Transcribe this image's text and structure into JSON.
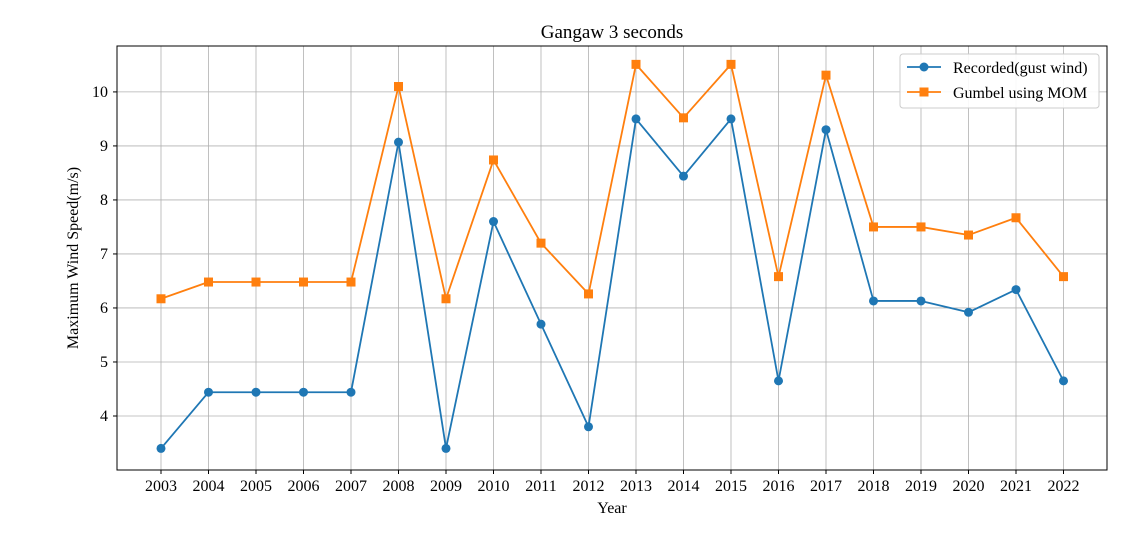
{
  "chart_data": {
    "type": "line",
    "title": "Gangaw 3 seconds",
    "xlabel": "Year",
    "ylabel": "Maximum Wind Speed(m/s)",
    "x": [
      "2003",
      "2004",
      "2005",
      "2006",
      "2007",
      "2008",
      "2009",
      "2010",
      "2011",
      "2012",
      "2013",
      "2014",
      "2015",
      "2016",
      "2017",
      "2018",
      "2019",
      "2020",
      "2021",
      "2022"
    ],
    "ylim": [
      3.0,
      10.85
    ],
    "yticks": [
      4,
      5,
      6,
      7,
      8,
      9,
      10
    ],
    "grid": true,
    "legend_position": "top-right",
    "series": [
      {
        "name": "Recorded(gust wind)",
        "color": "#1f77b4",
        "marker": "circle",
        "values": [
          3.4,
          4.44,
          4.44,
          4.44,
          4.44,
          9.07,
          3.4,
          7.6,
          5.7,
          3.8,
          9.5,
          8.44,
          9.5,
          4.65,
          9.3,
          6.13,
          6.13,
          5.92,
          6.34,
          4.65
        ]
      },
      {
        "name": "Gumbel using MOM",
        "color": "#ff7f0e",
        "marker": "square",
        "values": [
          6.17,
          6.48,
          6.48,
          6.48,
          6.48,
          10.1,
          6.17,
          8.74,
          7.2,
          6.26,
          10.51,
          9.52,
          10.51,
          6.58,
          10.31,
          7.5,
          7.5,
          7.35,
          7.67,
          6.58
        ]
      }
    ]
  }
}
